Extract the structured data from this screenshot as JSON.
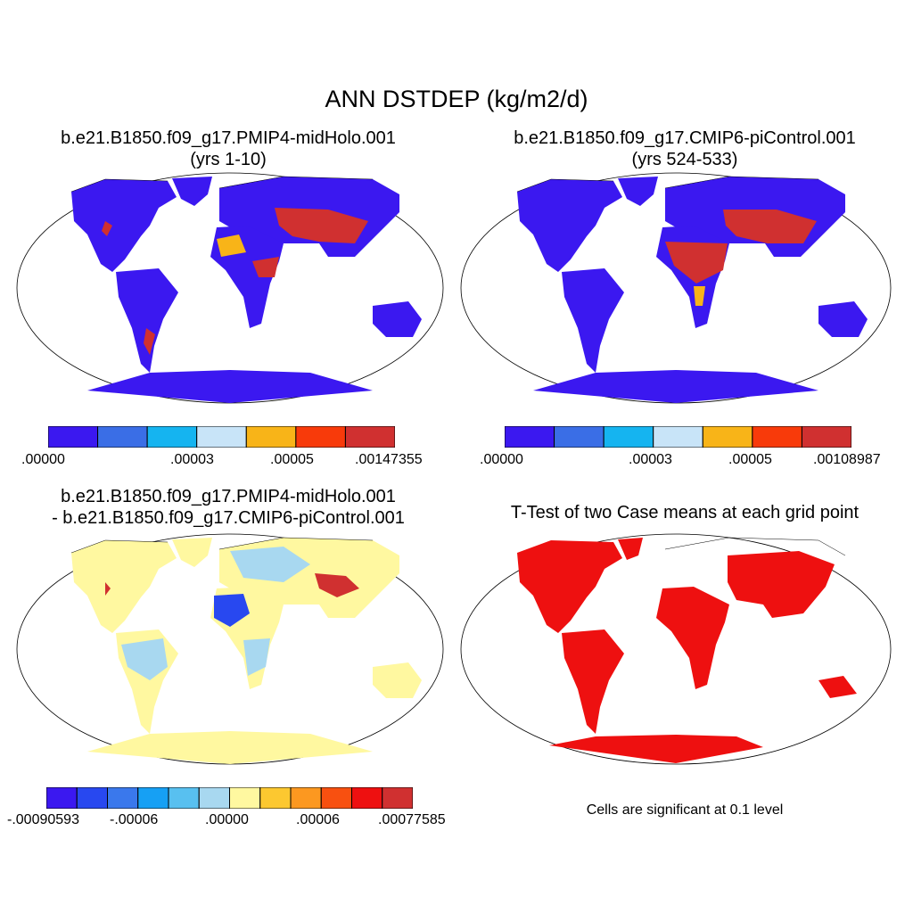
{
  "title": "ANN DSTDEP (kg/m2/d)",
  "panels": {
    "p1": {
      "line1": "b.e21.B1850.f09_g17.PMIP4-midHolo.001",
      "line2": "(yrs 1-10)"
    },
    "p2": {
      "line1": "b.e21.B1850.f09_g17.CMIP6-piControl.001",
      "line2": "(yrs 524-533)"
    },
    "p3": {
      "line1": "b.e21.B1850.f09_g17.PMIP4-midHolo.001",
      "line2": "- b.e21.B1850.f09_g17.CMIP6-piControl.001"
    },
    "p4": {
      "line1": "T-Test of two Case means at each grid point"
    }
  },
  "footnote": "Cells are significant at 0.1 level",
  "colorbars": {
    "cb1": {
      "colors": [
        "#3b18f0",
        "#3a6ee6",
        "#15b4f0",
        "#c8e4f8",
        "#f8b418",
        "#f83a0a",
        "#d03030"
      ],
      "ticks": [
        ".00000",
        ".00003",
        ".00005",
        ".00147355"
      ]
    },
    "cb2": {
      "colors": [
        "#3b18f0",
        "#3a6ee6",
        "#15b4f0",
        "#c8e4f8",
        "#f8b418",
        "#f83a0a",
        "#d03030"
      ],
      "ticks": [
        ".00000",
        ".00003",
        ".00005",
        ".00108987"
      ]
    },
    "cb3": {
      "colors": [
        "#3b18f0",
        "#2848f0",
        "#3a78ec",
        "#16a0f4",
        "#58c0f0",
        "#a8d8f0",
        "#fff8a0",
        "#fcc830",
        "#fc9820",
        "#f85010",
        "#ee1010",
        "#d03030"
      ],
      "ticks": [
        "-.00090593",
        "-.00006",
        ".00000",
        ".00006",
        ".00077585"
      ]
    }
  },
  "chart_data": [
    {
      "type": "heatmap",
      "title": "b.e21.B1850.f09_g17.PMIP4-midHolo.001 (yrs 1-10)",
      "variable": "ANN DSTDEP (kg/m2/d)",
      "legend_ticks": [
        ".00000",
        ".00003",
        ".00005",
        ".00147355"
      ],
      "range": [
        0.0,
        0.00147355
      ]
    },
    {
      "type": "heatmap",
      "title": "b.e21.B1850.f09_g17.CMIP6-piControl.001 (yrs 524-533)",
      "variable": "ANN DSTDEP (kg/m2/d)",
      "legend_ticks": [
        ".00000",
        ".00003",
        ".00005",
        ".00108987"
      ],
      "range": [
        0.0,
        0.00108987
      ]
    },
    {
      "type": "heatmap",
      "title": "b.e21.B1850.f09_g17.PMIP4-midHolo.001 - b.e21.B1850.f09_g17.CMIP6-piControl.001",
      "variable": "ANN DSTDEP difference (kg/m2/d)",
      "legend_ticks": [
        "-.00090593",
        "-.00006",
        ".00000",
        ".00006",
        ".00077585"
      ],
      "range": [
        -0.00090593,
        0.00077585
      ]
    },
    {
      "type": "heatmap",
      "title": "T-Test of two Case means at each grid point",
      "significance_level": 0.1,
      "note": "Cells are significant at 0.1 level"
    }
  ]
}
